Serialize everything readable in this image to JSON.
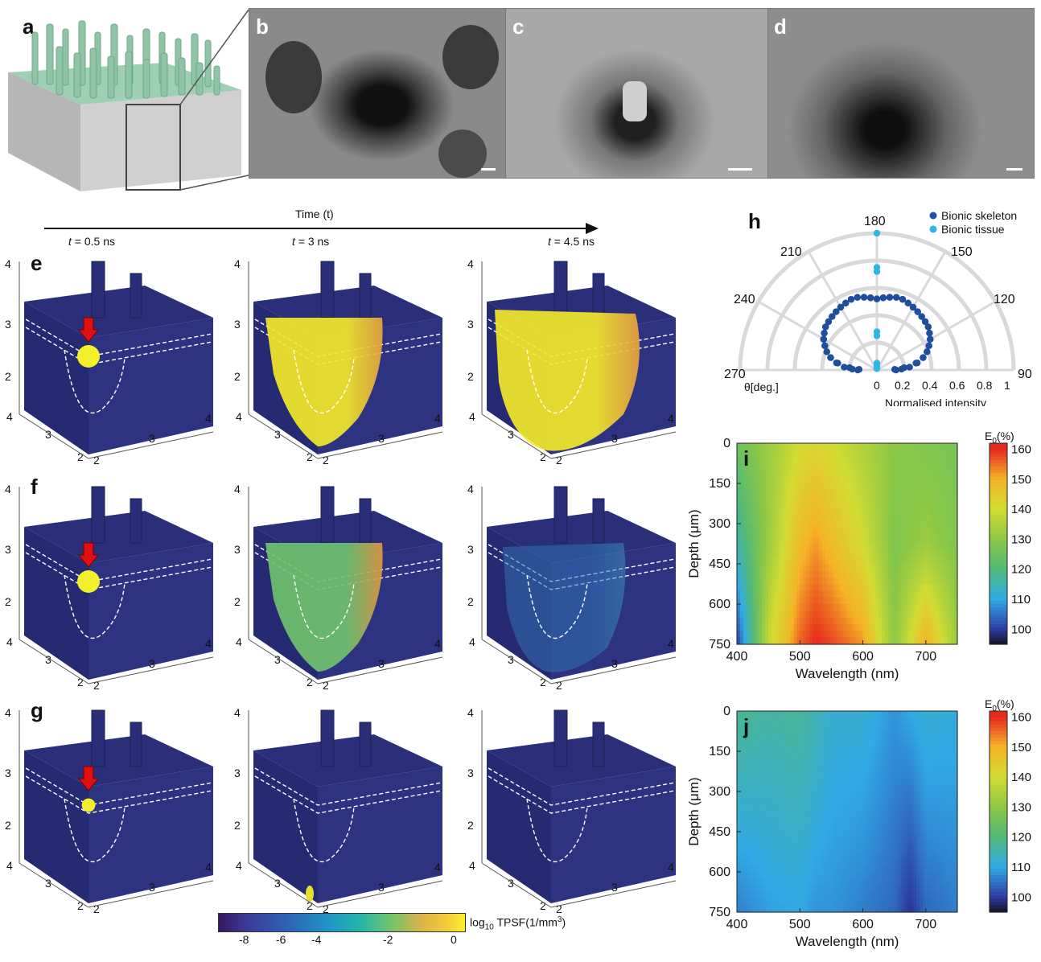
{
  "panels": {
    "a": "a",
    "b": "b",
    "c": "c",
    "d": "d",
    "e": "e",
    "f": "f",
    "g": "g",
    "h": "h",
    "i": "i",
    "j": "j"
  },
  "time_axis": {
    "label": "Time (t)",
    "times": [
      {
        "prefix": "t",
        "value": " = 0.5 ns"
      },
      {
        "prefix": "t",
        "value": " = 3 ns"
      },
      {
        "prefix": "t",
        "value": " = 4.5 ns"
      }
    ]
  },
  "cube_axis": {
    "vertical_ticks": [
      "4",
      "3",
      "2"
    ],
    "left_ticks": [
      "4",
      "3",
      "2"
    ],
    "right_ticks": [
      "2",
      "3",
      "4"
    ]
  },
  "cube_states": {
    "e": [
      "seed",
      "medium",
      "large"
    ],
    "f": [
      "seed",
      "medium-fade",
      "faint"
    ],
    "g": [
      "seed-small",
      "speck",
      "none"
    ]
  },
  "colorbar_tpsf": {
    "ticks": [
      "-8",
      "-4",
      "-6",
      "-2",
      "0"
    ],
    "label_pre": "log",
    "label_sub": "10",
    "label_post": " TPSF(1/mm",
    "label_sup": "3",
    "label_end": ")"
  },
  "chart_data": [
    {
      "panel": "h",
      "type": "scatter",
      "coordinate": "polar",
      "angle_ticks": [
        "180",
        "150",
        "120",
        "90",
        "210",
        "240",
        "270"
      ],
      "angle_label": "θ[deg.]",
      "radial_ticks": [
        "0",
        "0.2",
        "0.4",
        "0.6",
        "0.8",
        "1"
      ],
      "radial_label": "Normalised intensity",
      "series": [
        {
          "name": "Bionic skeleton",
          "color": "#1f4e9c",
          "theta": [
            90,
            92,
            95,
            100,
            105,
            110,
            115,
            120,
            125,
            130,
            135,
            140,
            145,
            150,
            155,
            160,
            165,
            170,
            175,
            180,
            185,
            190,
            195,
            200,
            205,
            210,
            215,
            220,
            225,
            230,
            235,
            240,
            245,
            250,
            255,
            260,
            265,
            268
          ],
          "r": [
            0.14,
            0.18,
            0.24,
            0.3,
            0.35,
            0.39,
            0.42,
            0.45,
            0.47,
            0.49,
            0.5,
            0.51,
            0.52,
            0.53,
            0.54,
            0.55,
            0.55,
            0.54,
            0.53,
            0.52,
            0.53,
            0.54,
            0.55,
            0.55,
            0.54,
            0.53,
            0.52,
            0.51,
            0.5,
            0.49,
            0.47,
            0.45,
            0.42,
            0.39,
            0.35,
            0.29,
            0.2,
            0.13
          ]
        },
        {
          "name": "Bionic tissue",
          "color": "#2fb6e6",
          "theta": [
            180,
            180,
            180,
            180,
            180,
            180,
            180,
            180
          ],
          "r": [
            1.0,
            0.75,
            0.72,
            0.28,
            0.25,
            0.05,
            0.03,
            0.01
          ]
        }
      ]
    },
    {
      "panel": "i",
      "type": "heatmap",
      "xlabel": "Wavelength (nm)",
      "ylabel": "Depth (μm)",
      "x_ticks": [
        "400",
        "500",
        "600",
        "700"
      ],
      "y_ticks": [
        "0",
        "150",
        "300",
        "450",
        "600",
        "750"
      ],
      "xlim": [
        400,
        750
      ],
      "ylim": [
        0,
        750
      ],
      "colorbar": {
        "title_pre": "E",
        "title_sub": "0",
        "title_post": "(%)",
        "ticks": [
          "160",
          "150",
          "140",
          "130",
          "120",
          "110",
          "100"
        ],
        "range": [
          95,
          162
        ]
      },
      "description_values": {
        "wavelength": [
          400,
          450,
          500,
          525,
          550,
          600,
          650,
          700,
          750
        ],
        "depth_0": [
          125,
          132,
          140,
          142,
          140,
          135,
          130,
          128,
          127
        ],
        "depth_375": [
          115,
          132,
          148,
          152,
          148,
          140,
          128,
          132,
          128
        ],
        "depth_750": [
          100,
          138,
          156,
          160,
          158,
          152,
          130,
          150,
          132
        ]
      }
    },
    {
      "panel": "j",
      "type": "heatmap",
      "xlabel": "Wavelength (nm)",
      "ylabel": "Depth (μm)",
      "x_ticks": [
        "400",
        "500",
        "600",
        "700"
      ],
      "y_ticks": [
        "0",
        "150",
        "300",
        "450",
        "600",
        "750"
      ],
      "xlim": [
        400,
        750
      ],
      "ylim": [
        0,
        750
      ],
      "colorbar": {
        "title_pre": "E",
        "title_sub": "0",
        "title_post": "(%)",
        "ticks": [
          "160",
          "150",
          "140",
          "130",
          "120",
          "110",
          "100"
        ],
        "range": [
          95,
          162
        ]
      },
      "description_values": {
        "wavelength": [
          400,
          450,
          500,
          525,
          550,
          600,
          650,
          675,
          700,
          750
        ],
        "depth_0": [
          118,
          116,
          117,
          115,
          112,
          112,
          108,
          110,
          112,
          111
        ],
        "depth_750": [
          106,
          109,
          110,
          108,
          108,
          106,
          104,
          99,
          104,
          106
        ]
      }
    }
  ]
}
